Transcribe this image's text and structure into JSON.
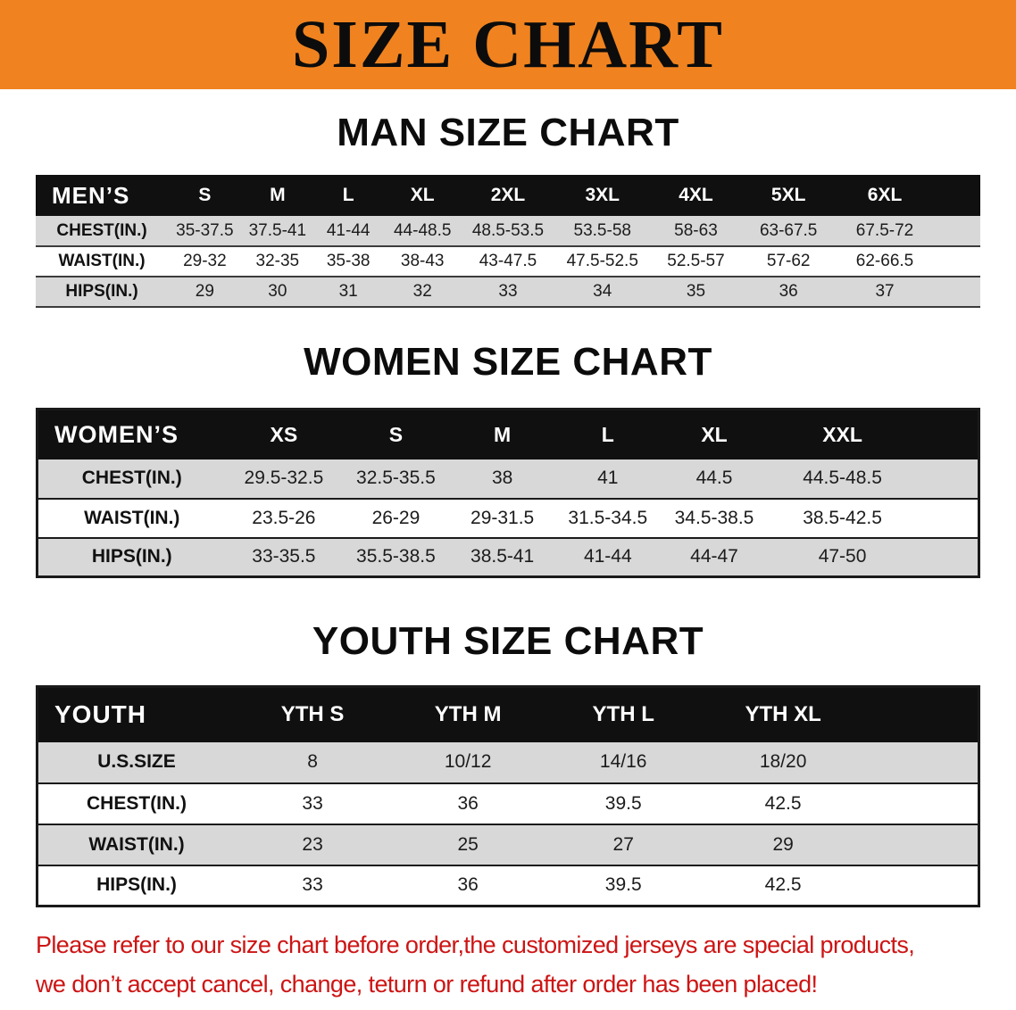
{
  "banner": {
    "title": "SIZE CHART"
  },
  "colors": {
    "banner_bg": "#f0831f",
    "table_header_bg": "#101010",
    "table_header_text": "#ffffff",
    "row_stripe": "#d8d8d8",
    "note_text": "#cd1414"
  },
  "men": {
    "heading": "MAN SIZE CHART",
    "label": "MEN’S",
    "columns": [
      "S",
      "M",
      "L",
      "XL",
      "2XL",
      "3XL",
      "4XL",
      "5XL",
      "6XL"
    ],
    "rows": [
      {
        "label": "CHEST(IN.)",
        "values": [
          "35-37.5",
          "37.5-41",
          "41-44",
          "44-48.5",
          "48.5-53.5",
          "53.5-58",
          "58-63",
          "63-67.5",
          "67.5-72"
        ]
      },
      {
        "label": "WAIST(IN.)",
        "values": [
          "29-32",
          "32-35",
          "35-38",
          "38-43",
          "43-47.5",
          "47.5-52.5",
          "52.5-57",
          "57-62",
          "62-66.5"
        ]
      },
      {
        "label": "HIPS(IN.)",
        "values": [
          "29",
          "30",
          "31",
          "32",
          "33",
          "34",
          "35",
          "36",
          "37"
        ]
      }
    ]
  },
  "women": {
    "heading": "WOMEN SIZE CHART",
    "label": "WOMEN’S",
    "columns": [
      "XS",
      "S",
      "M",
      "L",
      "XL",
      "XXL"
    ],
    "rows": [
      {
        "label": "CHEST(IN.)",
        "values": [
          "29.5-32.5",
          "32.5-35.5",
          "38",
          "41",
          "44.5",
          "44.5-48.5"
        ]
      },
      {
        "label": "WAIST(IN.)",
        "values": [
          "23.5-26",
          "26-29",
          "29-31.5",
          "31.5-34.5",
          "34.5-38.5",
          "38.5-42.5"
        ]
      },
      {
        "label": "HIPS(IN.)",
        "values": [
          "33-35.5",
          "35.5-38.5",
          "38.5-41",
          "41-44",
          "44-47",
          "47-50"
        ]
      }
    ]
  },
  "youth": {
    "heading": "YOUTH SIZE CHART",
    "label": "YOUTH",
    "columns": [
      "YTH S",
      "YTH M",
      "YTH L",
      "YTH XL"
    ],
    "rows": [
      {
        "label": "U.S.SIZE",
        "values": [
          "8",
          "10/12",
          "14/16",
          "18/20"
        ]
      },
      {
        "label": "CHEST(IN.)",
        "values": [
          "33",
          "36",
          "39.5",
          "42.5"
        ]
      },
      {
        "label": "WAIST(IN.)",
        "values": [
          "23",
          "25",
          "27",
          "29"
        ]
      },
      {
        "label": "HIPS(IN.)",
        "values": [
          "33",
          "36",
          "39.5",
          "42.5"
        ]
      }
    ]
  },
  "note": {
    "line1": "Please refer to our size chart before order,the customized jerseys are special products,",
    "line2": "we don’t accept cancel, change, teturn or refund after order has been placed!"
  }
}
